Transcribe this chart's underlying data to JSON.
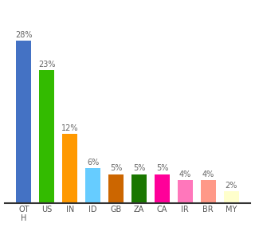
{
  "categories": [
    "OT\nH",
    "US",
    "IN",
    "ID",
    "GB",
    "ZA",
    "CA",
    "IR",
    "BR",
    "MY"
  ],
  "values": [
    28,
    23,
    12,
    6,
    5,
    5,
    5,
    4,
    4,
    2
  ],
  "bar_colors": [
    "#4472c4",
    "#33bb00",
    "#ff9900",
    "#66ccff",
    "#cc6600",
    "#1a7700",
    "#ff0099",
    "#ff77bb",
    "#ff9988",
    "#ffffcc"
  ],
  "label_fontsize": 7,
  "tick_fontsize": 7,
  "ylim": [
    0,
    33
  ],
  "bar_width": 0.65
}
